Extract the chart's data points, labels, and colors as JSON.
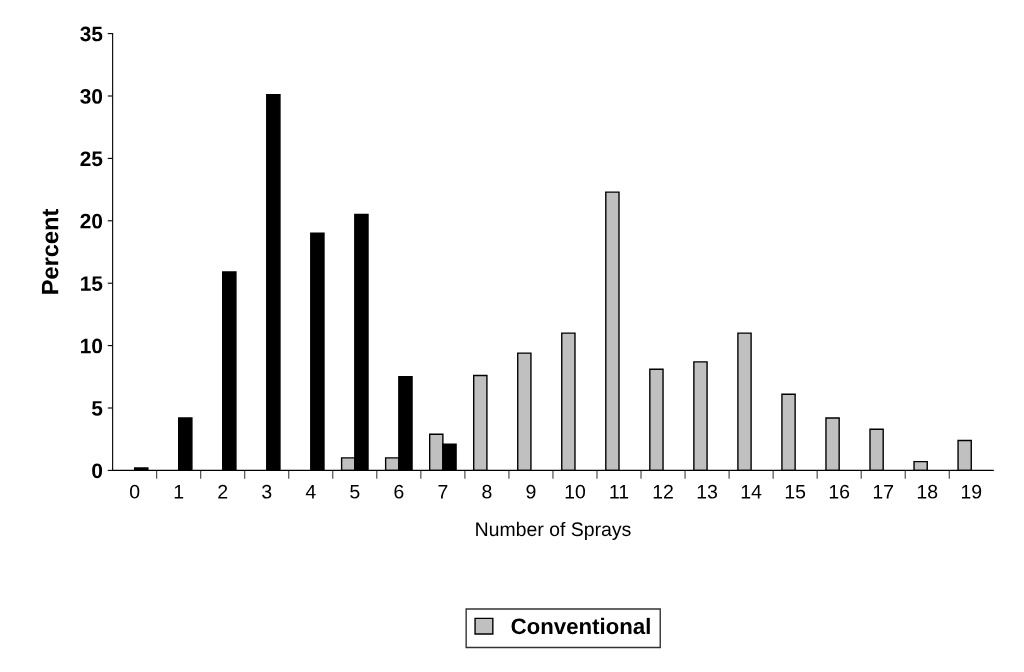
{
  "chart_data": {
    "type": "bar",
    "xlabel": "Number of Sprays",
    "ylabel": "Percent",
    "categories": [
      "0",
      "1",
      "2",
      "3",
      "4",
      "5",
      "6",
      "7",
      "8",
      "9",
      "10",
      "11",
      "12",
      "13",
      "14",
      "15",
      "16",
      "17",
      "18",
      "19"
    ],
    "series": [
      {
        "name": "Conventional",
        "color": "#c0c0c0",
        "values": [
          null,
          null,
          null,
          null,
          null,
          1.0,
          1.0,
          2.9,
          7.6,
          9.4,
          11.0,
          22.3,
          8.1,
          8.7,
          11.0,
          6.1,
          4.2,
          3.3,
          0.7,
          2.4
        ]
      },
      {
        "color": "#000000",
        "values": [
          0.2,
          4.2,
          15.9,
          30.1,
          19.0,
          20.5,
          7.5,
          2.1,
          null,
          null,
          null,
          null,
          null,
          null,
          null,
          null,
          null,
          null,
          null,
          null
        ]
      }
    ],
    "ylim": [
      0,
      35
    ],
    "yticks": [
      0,
      5,
      10,
      15,
      20,
      25,
      30,
      35
    ],
    "grid": false,
    "legend": "bottom"
  }
}
